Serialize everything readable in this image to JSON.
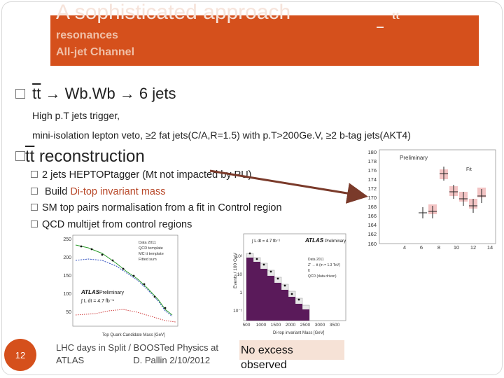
{
  "header": {
    "title": "A sophisticated approach",
    "title_symbol": "tt",
    "subtitle1": "resonances",
    "subtitle2": "All-jet Channel"
  },
  "bullet1": {
    "prefix": "tt",
    "rest": " → Wb.Wb → 6 jets"
  },
  "body": {
    "line1": "High p.T jets trigger,",
    "line2": "mini-isolation lepton veto, ≥2  fat jets(C/A,R=1.5) with p.T>200Ge.V, ≥2 b-tag jets(AKT4)"
  },
  "bullet2": {
    "prefix": "tt",
    "rest": " reconstruction"
  },
  "subbullets": [
    {
      "text": "2 jets HEPTOPtagger (Mt not impacted by PU)"
    },
    {
      "pre": " Build ",
      "highlight": "Di-top invariant mass"
    },
    {
      "text": "SM top pairs normalisation from a fit in Control region"
    },
    {
      "text": "QCD multijet from control regions"
    }
  ],
  "plots": {
    "right": {
      "y_ticks": [
        "180",
        "178",
        "176",
        "174",
        "172",
        "170",
        "168",
        "166",
        "164",
        "162",
        "160"
      ],
      "x_ticks": [
        "4",
        "6",
        "8",
        "10",
        "12",
        "14"
      ],
      "label": "Preliminary",
      "legend": "Fit"
    },
    "left": {
      "y_ticks": [
        "250",
        "200",
        "150",
        "100",
        "50"
      ],
      "x_label": "Top Quark Candidate Mass [GeV]",
      "legend": [
        "Data 2011",
        "QCD template",
        "MC tt template",
        "Fitted sum"
      ],
      "atlas": "ATLAS",
      "atlas_sub": "Preliminary",
      "lumi": "∫ L dt = 4.7 fb⁻¹"
    },
    "mid": {
      "y_label": "Events / 100 GeV",
      "x_ticks": [
        "500",
        "1000",
        "1500",
        "2000",
        "2500",
        "3000",
        "3500"
      ],
      "x_label": "Di-top invariant Mass [GeV]",
      "y_ticks": [
        "10²",
        "10",
        "1",
        "10⁻¹"
      ],
      "atlas": "ATLAS",
      "atlas_sub": "Preliminary",
      "lumi": "∫ L dt = 4.7 fb⁻¹",
      "legend": [
        "Data 2011",
        "Z' → tt (m = 1.3 TeV)",
        "tt",
        "QCD (data driven)"
      ]
    }
  },
  "footer": {
    "line1": "LHC days in Split / BOOSTed Physics at",
    "line2_left": "ATLAS",
    "line2_right": "D. Pallin  2/10/2012"
  },
  "slide_number": "12",
  "callout": {
    "line1": "No excess",
    "line2": "observed"
  },
  "colors": {
    "banner": "#d5501c",
    "qcd_fill": "#5a1a5a",
    "tt_fill": "#e8e8e8",
    "arrow": "#7a3a2a"
  }
}
